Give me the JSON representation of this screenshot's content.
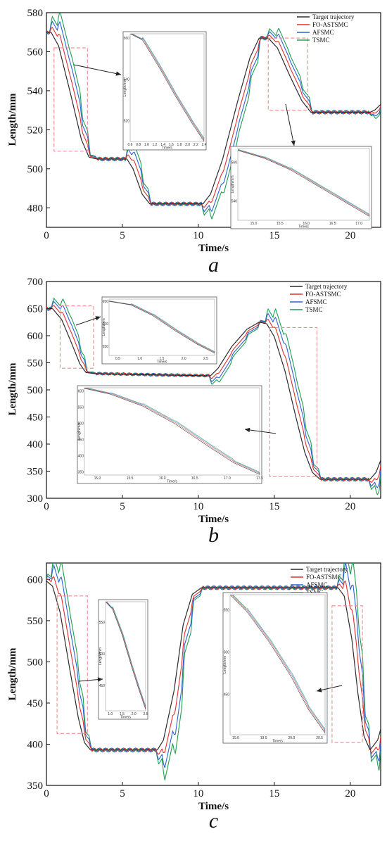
{
  "colors": {
    "target": "#2b2b2b",
    "fo_astsmc": "#e0302b",
    "afsmc": "#2a63d6",
    "tsmc": "#1f9e53",
    "zoom_box": "#f08a8a",
    "arrow": "#222222"
  },
  "chart_data": [
    {
      "type": "line",
      "panel_label": "a",
      "xlabel": "Time/s",
      "ylabel": "Length/mm",
      "xlim": [
        0,
        22
      ],
      "ylim": [
        470,
        580
      ],
      "xticks": [
        0,
        5,
        10,
        15,
        20
      ],
      "yticks": [
        480,
        500,
        520,
        540,
        560,
        580
      ],
      "legend": [
        "Target trajectory",
        "FO-ASTSMC",
        "AFSMC",
        "TSMC"
      ],
      "legend_position": "top-right",
      "target_points": [
        [
          0,
          570
        ],
        [
          0.3,
          570
        ],
        [
          0.8,
          563
        ],
        [
          1.6,
          538
        ],
        [
          2.3,
          515
        ],
        [
          2.8,
          506
        ],
        [
          3.3,
          505
        ],
        [
          5.3,
          505
        ],
        [
          5.7,
          500
        ],
        [
          6.3,
          487
        ],
        [
          6.8,
          482
        ],
        [
          7.5,
          482
        ],
        [
          10.3,
          482
        ],
        [
          10.8,
          487
        ],
        [
          11.6,
          505
        ],
        [
          12.6,
          535
        ],
        [
          13.4,
          557
        ],
        [
          14.0,
          567
        ],
        [
          14.6,
          567
        ],
        [
          15.2,
          562
        ],
        [
          16.0,
          548
        ],
        [
          16.8,
          535
        ],
        [
          17.4,
          529
        ],
        [
          18.5,
          529
        ],
        [
          21.3,
          529
        ],
        [
          21.6,
          530
        ],
        [
          22,
          533
        ]
      ],
      "zoom_box_x": [
        0.5,
        2.7
      ],
      "zoom_box_y": [
        509,
        562
      ],
      "zoom_box2_x": [
        14.6,
        17.2
      ],
      "zoom_box2_y": [
        530,
        567
      ],
      "insets": [
        {
          "xlabel": "Time/s",
          "ylabel": "Length/mm",
          "xlim": [
            0.6,
            2.4
          ],
          "ylim": [
            510,
            562
          ],
          "xticks": [
            0.6,
            0.8,
            1.0,
            1.2,
            1.4,
            1.6,
            1.8,
            2.0,
            2.2,
            2.4
          ],
          "yticks": [
            520,
            540,
            560
          ],
          "target_points": [
            [
              0.6,
              562
            ],
            [
              0.9,
              559
            ],
            [
              1.3,
              546
            ],
            [
              1.7,
              532
            ],
            [
              2.1,
              519
            ],
            [
              2.4,
              510
            ]
          ]
        },
        {
          "xlabel": "Time/s",
          "ylabel": "Length/mm",
          "xlim": [
            14.7,
            17.2
          ],
          "ylim": [
            530,
            567
          ],
          "xticks": [
            15.0,
            15.5,
            16.0,
            16.5,
            17.0
          ],
          "yticks": [
            540,
            560
          ],
          "target_points": [
            [
              14.7,
              566
            ],
            [
              15.2,
              562
            ],
            [
              15.7,
              556
            ],
            [
              16.2,
              548
            ],
            [
              16.7,
              540
            ],
            [
              17.2,
              532
            ]
          ]
        }
      ]
    },
    {
      "type": "line",
      "panel_label": "b",
      "xlabel": "Time/s",
      "ylabel": "Length/mm",
      "xlim": [
        0,
        22
      ],
      "ylim": [
        300,
        700
      ],
      "xticks": [
        0,
        5,
        10,
        15,
        20
      ],
      "yticks": [
        300,
        350,
        400,
        450,
        500,
        550,
        600,
        650,
        700
      ],
      "legend": [
        "Target trajectory",
        "FO-ASTSMC",
        "AFSMC",
        "TSMC"
      ],
      "legend_position": "top-right",
      "target_points": [
        [
          0,
          650
        ],
        [
          0.4,
          650
        ],
        [
          1.0,
          630
        ],
        [
          1.6,
          590
        ],
        [
          2.2,
          548
        ],
        [
          2.6,
          532
        ],
        [
          3.2,
          530
        ],
        [
          6.5,
          528
        ],
        [
          10.8,
          526
        ],
        [
          11.3,
          540
        ],
        [
          12.2,
          580
        ],
        [
          13.2,
          612
        ],
        [
          14.0,
          625
        ],
        [
          14.5,
          622
        ],
        [
          15.0,
          598
        ],
        [
          15.7,
          535
        ],
        [
          16.4,
          452
        ],
        [
          17.0,
          385
        ],
        [
          17.5,
          348
        ],
        [
          18.0,
          335
        ],
        [
          21.3,
          335
        ],
        [
          21.7,
          348
        ],
        [
          22,
          370
        ]
      ],
      "zoom_box_x": [
        0.9,
        3.1
      ],
      "zoom_box_y": [
        540,
        655
      ],
      "zoom_box2_x": [
        14.7,
        17.8
      ],
      "zoom_box2_y": [
        340,
        615
      ],
      "insets": [
        {
          "xlabel": "Time/s",
          "ylabel": "Length/mm",
          "xlim": [
            0.3,
            2.7
          ],
          "ylim": [
            530,
            655
          ],
          "xticks": [
            0.5,
            1.0,
            1.5,
            2.0,
            2.5
          ],
          "yticks": [
            550,
            600,
            650
          ],
          "target_points": [
            [
              0.3,
              650
            ],
            [
              0.8,
              642
            ],
            [
              1.3,
              618
            ],
            [
              1.8,
              585
            ],
            [
              2.3,
              555
            ],
            [
              2.7,
              535
            ]
          ]
        },
        {
          "xlabel": "Time/s",
          "ylabel": "Length/mm",
          "xlim": [
            14.8,
            17.5
          ],
          "ylim": [
            340,
            610
          ],
          "xticks": [
            15.0,
            15.5,
            16.0,
            16.5,
            17.0,
            17.5
          ],
          "yticks": [
            350,
            400,
            450,
            500,
            550,
            600
          ],
          "target_points": [
            [
              14.8,
              608
            ],
            [
              15.2,
              590
            ],
            [
              15.7,
              553
            ],
            [
              16.2,
              498
            ],
            [
              16.7,
              430
            ],
            [
              17.1,
              378
            ],
            [
              17.5,
              342
            ]
          ]
        }
      ]
    },
    {
      "type": "line",
      "panel_label": "c",
      "xlabel": "Time/s",
      "ylabel": "Length/mm",
      "xlim": [
        0,
        22
      ],
      "ylim": [
        350,
        620
      ],
      "xticks": [
        0,
        5,
        10,
        15,
        20
      ],
      "yticks": [
        350,
        400,
        450,
        500,
        550,
        600
      ],
      "legend": [
        "Target trajectory",
        "FO-ASTSMC",
        "AFSMC",
        "TSMC"
      ],
      "legend_position": "top-right",
      "target_points": [
        [
          0,
          598
        ],
        [
          0.4,
          592
        ],
        [
          0.9,
          560
        ],
        [
          1.5,
          495
        ],
        [
          2.1,
          432
        ],
        [
          2.5,
          402
        ],
        [
          2.9,
          393
        ],
        [
          3.5,
          393
        ],
        [
          7.3,
          393
        ],
        [
          7.7,
          405
        ],
        [
          8.4,
          465
        ],
        [
          9.0,
          545
        ],
        [
          9.6,
          582
        ],
        [
          10.2,
          590
        ],
        [
          19.2,
          590
        ],
        [
          19.6,
          580
        ],
        [
          20.1,
          528
        ],
        [
          20.5,
          462
        ],
        [
          20.9,
          410
        ],
        [
          21.3,
          393
        ],
        [
          21.8,
          405
        ],
        [
          22,
          418
        ]
      ],
      "zoom_box_x": [
        0.7,
        2.7
      ],
      "zoom_box_y": [
        413,
        580
      ],
      "zoom_box2_x": [
        18.8,
        20.8
      ],
      "zoom_box2_y": [
        402,
        568
      ],
      "insets": [
        {
          "xlabel": "Time/s",
          "ylabel": "Length/mm",
          "xlim": [
            0.8,
            2.5
          ],
          "ylim": [
            410,
            582
          ],
          "xticks": [
            1.0,
            1.5,
            2.0,
            2.5
          ],
          "yticks": [
            450,
            500,
            550
          ],
          "target_points": [
            [
              0.8,
              582
            ],
            [
              1.1,
              570
            ],
            [
              1.5,
              530
            ],
            [
              1.9,
              480
            ],
            [
              2.2,
              445
            ],
            [
              2.5,
              412
            ]
          ]
        },
        {
          "xlabel": "Time/s",
          "ylabel": "Length/mm",
          "xlim": [
            18.9,
            20.6
          ],
          "ylim": [
            402,
            568
          ],
          "xticks": [
            19.0,
            19.5,
            20.0,
            20.5
          ],
          "yticks": [
            450,
            500,
            550
          ],
          "target_points": [
            [
              18.9,
              568
            ],
            [
              19.2,
              548
            ],
            [
              19.6,
              512
            ],
            [
              20.0,
              470
            ],
            [
              20.3,
              432
            ],
            [
              20.6,
              404
            ]
          ]
        }
      ]
    }
  ]
}
